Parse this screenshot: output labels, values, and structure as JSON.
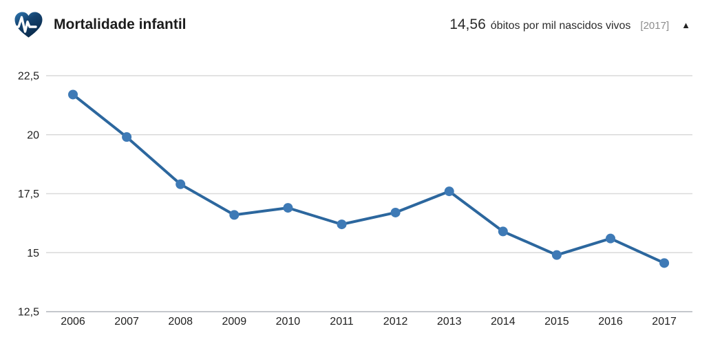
{
  "header": {
    "title": "Mortalidade infantil",
    "value": "14,56",
    "unit": "óbitos por mil nascidos vivos",
    "year_badge": "[2017]",
    "icons": {
      "logo": "heartbeat-heart-icon",
      "collapse": "chevron-up-icon",
      "collapse_glyph": "▲"
    }
  },
  "colors": {
    "line": "#2c679e",
    "marker": "#3e7ab6",
    "grid": "#d9d9d9",
    "axis_bottom": "#c4c7cc",
    "tick_text": "#1f1f1f",
    "title_text": "#1c1c1c",
    "muted_text": "#8d8d8d",
    "icon_dark": "#0a2a4a",
    "icon_light": "#2f79b3"
  },
  "chart_data": {
    "type": "line",
    "series_name": "Mortalidade infantil",
    "x": [
      2006,
      2007,
      2008,
      2009,
      2010,
      2011,
      2012,
      2013,
      2014,
      2015,
      2016,
      2017
    ],
    "values": [
      21.7,
      19.9,
      17.9,
      16.6,
      16.9,
      16.2,
      16.7,
      17.6,
      15.9,
      14.9,
      15.6,
      14.56
    ],
    "unit": "óbitos por mil nascidos vivos",
    "ylim": [
      12.5,
      22.5
    ],
    "yticks": [
      22.5,
      20,
      17.5,
      15,
      12.5
    ],
    "ytick_labels": [
      "22,5",
      "20",
      "17,5",
      "15",
      "12,5"
    ],
    "grid": true,
    "legend": "none"
  }
}
